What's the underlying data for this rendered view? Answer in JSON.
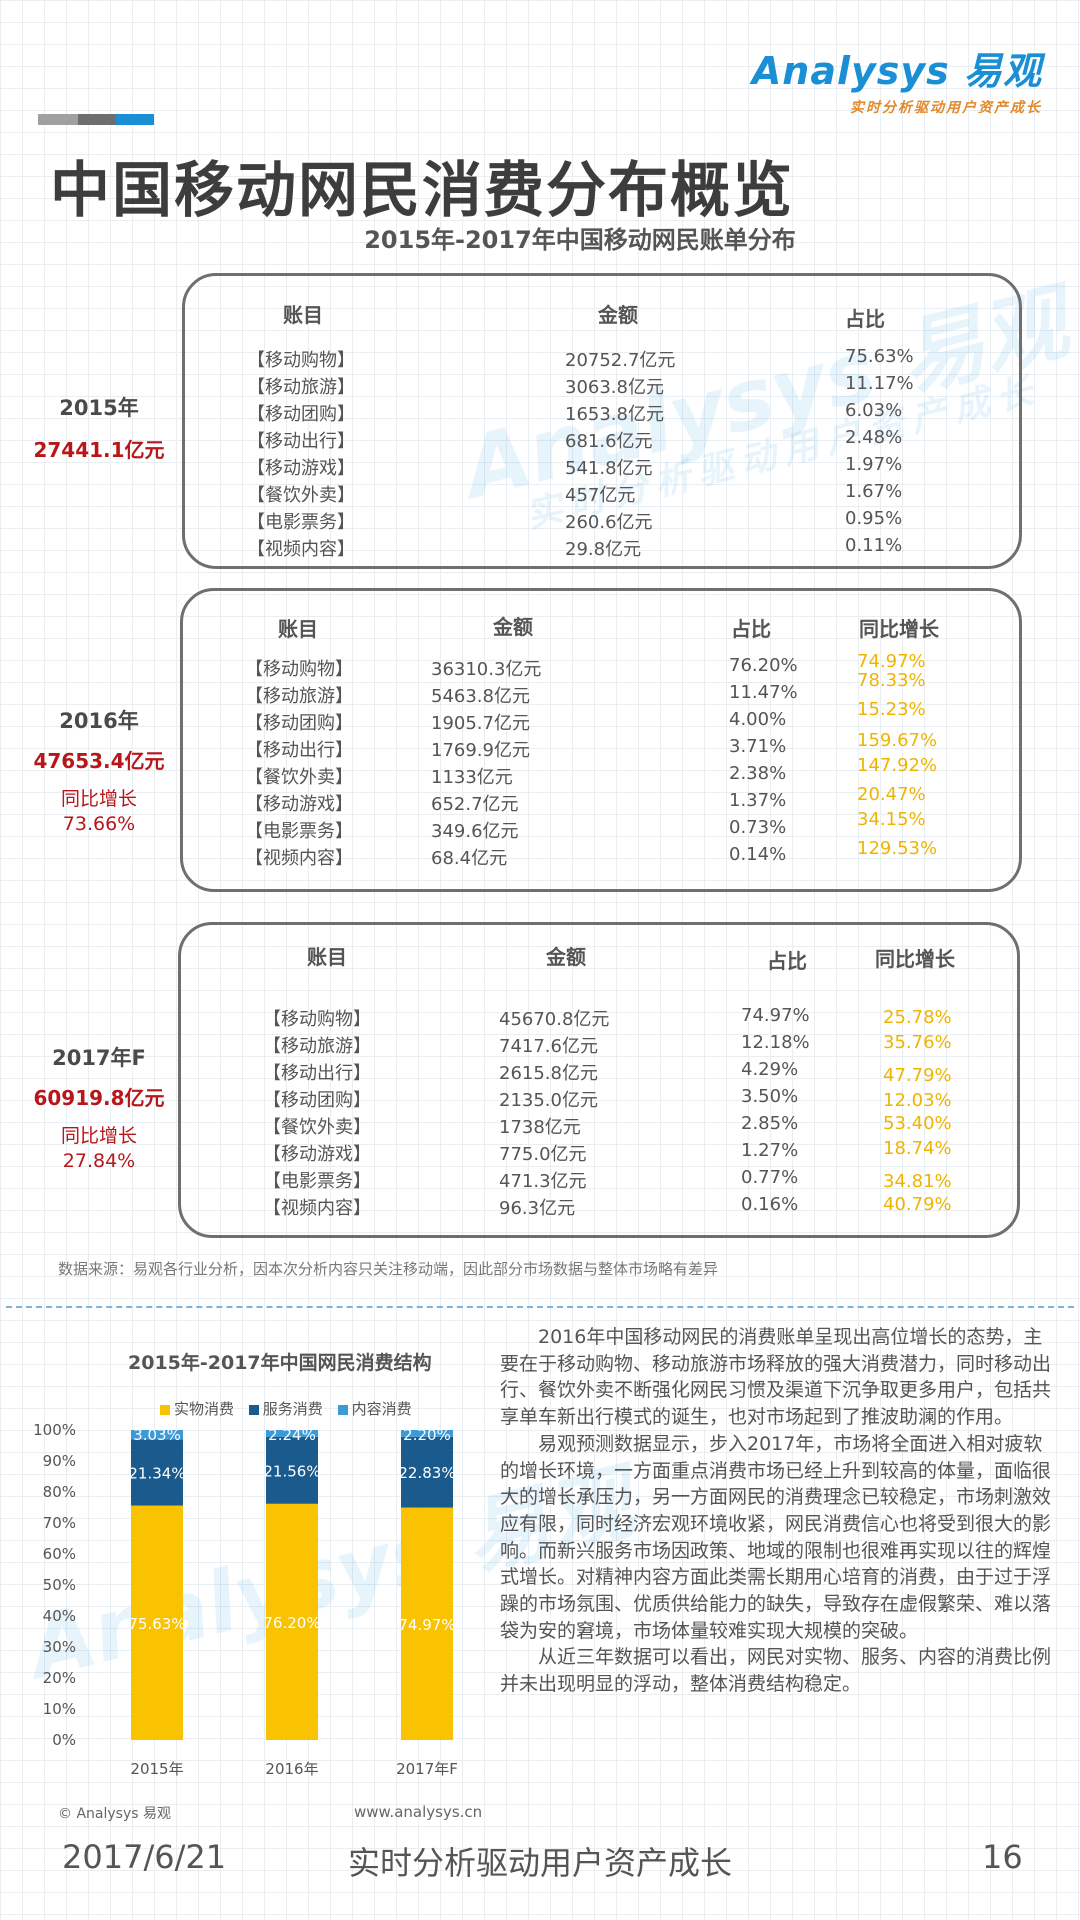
{
  "logo": {
    "name": "Analysys 易观",
    "tagline": "实时分析驱动用户资产成长"
  },
  "watermark": {
    "brand": "Analysys 易观",
    "tagline": "实时分析驱动用户资产成长"
  },
  "colors": {
    "physical": "#f9c302",
    "service": "#1b5a8c",
    "content": "#3c9ad8",
    "growth": "#f0b400",
    "total": "#b7171a"
  },
  "title": "中国移动网民消费分布概览",
  "subtitle": "2015年-2017年中国移动网民账单分布",
  "panels": [
    {
      "year": "2015年",
      "total": "27441.1亿元",
      "growth_label": "",
      "growth_value": "",
      "headers": {
        "item": "账目",
        "amount": "金额",
        "share": "占比",
        "growth": ""
      },
      "rows": [
        {
          "item": "【移动购物】",
          "amount": "20752.7亿元",
          "share": "75.63%",
          "growth": ""
        },
        {
          "item": "【移动旅游】",
          "amount": "3063.8亿元",
          "share": "11.17%",
          "growth": ""
        },
        {
          "item": "【移动团购】",
          "amount": "1653.8亿元",
          "share": "6.03%",
          "growth": ""
        },
        {
          "item": "【移动出行】",
          "amount": "681.6亿元",
          "share": "2.48%",
          "growth": ""
        },
        {
          "item": "【移动游戏】",
          "amount": "541.8亿元",
          "share": "1.97%",
          "growth": ""
        },
        {
          "item": "【餐饮外卖】",
          "amount": "457亿元",
          "share": "1.67%",
          "growth": ""
        },
        {
          "item": "【电影票务】",
          "amount": "260.6亿元",
          "share": "0.95%",
          "growth": ""
        },
        {
          "item": "【视频内容】",
          "amount": "29.8亿元",
          "share": "0.11%",
          "growth": ""
        }
      ]
    },
    {
      "year": "2016年",
      "total": "47653.4亿元",
      "growth_label": "同比增长",
      "growth_value": "73.66%",
      "headers": {
        "item": "账目",
        "amount": "金额",
        "share": "占比",
        "growth": "同比增长"
      },
      "rows": [
        {
          "item": "【移动购物】",
          "amount": "36310.3亿元",
          "share": "76.20%",
          "growth": "74.97%"
        },
        {
          "item": "【移动旅游】",
          "amount": "5463.8亿元",
          "share": "11.47%",
          "growth": "78.33%"
        },
        {
          "item": "【移动团购】",
          "amount": "1905.7亿元",
          "share": "4.00%",
          "growth": "15.23%"
        },
        {
          "item": "【移动出行】",
          "amount": "1769.9亿元",
          "share": "3.71%",
          "growth": "159.67%"
        },
        {
          "item": "【餐饮外卖】",
          "amount": "1133亿元",
          "share": "2.38%",
          "growth": "147.92%"
        },
        {
          "item": "【移动游戏】",
          "amount": "652.7亿元",
          "share": "1.37%",
          "growth": "20.47%"
        },
        {
          "item": "【电影票务】",
          "amount": "349.6亿元",
          "share": "0.73%",
          "growth": "34.15%"
        },
        {
          "item": "【视频内容】",
          "amount": "68.4亿元",
          "share": "0.14%",
          "growth": "129.53%"
        }
      ]
    },
    {
      "year": "2017年F",
      "total": "60919.8亿元",
      "growth_label": "同比增长",
      "growth_value": "27.84%",
      "headers": {
        "item": "账目",
        "amount": "金额",
        "share": "占比",
        "growth": "同比增长"
      },
      "rows": [
        {
          "item": "【移动购物】",
          "amount": "45670.8亿元",
          "share": "74.97%",
          "growth": "25.78%"
        },
        {
          "item": "【移动旅游】",
          "amount": "7417.6亿元",
          "share": "12.18%",
          "growth": "35.76%"
        },
        {
          "item": "【移动出行】",
          "amount": "2615.8亿元",
          "share": "4.29%",
          "growth": "47.79%"
        },
        {
          "item": "【移动团购】",
          "amount": "2135.0亿元",
          "share": "3.50%",
          "growth": "12.03%"
        },
        {
          "item": "【餐饮外卖】",
          "amount": "1738亿元",
          "share": "2.85%",
          "growth": "53.40%"
        },
        {
          "item": "【移动游戏】",
          "amount": "775.0亿元",
          "share": "1.27%",
          "growth": "18.74%"
        },
        {
          "item": "【电影票务】",
          "amount": "471.3亿元",
          "share": "0.77%",
          "growth": "34.81%"
        },
        {
          "item": "【视频内容】",
          "amount": "96.3亿元",
          "share": "0.16%",
          "growth": "40.79%"
        }
      ]
    }
  ],
  "source_note": "数据来源：易观各行业分析，因本次分析内容只关注移动端，因此部分市场数据与整体市场略有差异",
  "chart_data": {
    "type": "bar",
    "stacked": true,
    "title": "2015年-2017年中国网民消费结构",
    "categories": [
      "2015年",
      "2016年",
      "2017年F"
    ],
    "series": [
      {
        "name": "实物消费",
        "values": [
          75.63,
          76.2,
          74.97
        ],
        "labels": [
          "75.63%",
          "76.20%",
          "74.97%"
        ]
      },
      {
        "name": "服务消费",
        "values": [
          21.34,
          21.56,
          22.83
        ],
        "labels": [
          "21.34%",
          "21.56%",
          "22.83%"
        ]
      },
      {
        "name": "内容消费",
        "values": [
          3.03,
          2.24,
          2.2
        ],
        "labels": [
          "3.03%",
          "2.24%",
          "2.20%"
        ]
      }
    ],
    "ylim": [
      0,
      100
    ],
    "yticks": [
      "0%",
      "10%",
      "20%",
      "30%",
      "40%",
      "50%",
      "60%",
      "70%",
      "80%",
      "90%",
      "100%"
    ],
    "legend": "top"
  },
  "paragraphs": [
    "2016年中国移动网民的消费账单呈现出高位增长的态势，主要在于移动购物、移动旅游市场释放的强大消费潜力，同时移动出行、餐饮外卖不断强化网民习惯及渠道下沉争取更多用户，包括共享单车新出行模式的诞生，也对市场起到了推波助澜的作用。",
    "易观预测数据显示，步入2017年，市场将全面进入相对疲软的增长环境，一方面重点消费市场已经上升到较高的体量，面临很大的增长承压力，另一方面网民的消费理念已较稳定，市场刺激效应有限，同时经济宏观环境收紧，网民消费信心也将受到很大的影响。而新兴服务市场因政策、地域的限制也很难再实现以往的辉煌式增长。对精神内容方面此类需长期用心培育的消费，由于过于浮躁的市场氛围、优质供给能力的缺失，导致存在虚假繁荣、难以落袋为安的窘境，市场体量较难实现大规模的突破。",
    "从近三年数据可以看出，网民对实物、服务、内容的消费比例并未出现明显的浮动，整体消费结构稳定。"
  ],
  "footer": {
    "copyright": "© Analysys 易观",
    "url": "www.analysys.cn",
    "date": "2017/6/21",
    "slogan": "实时分析驱动用户资产成长",
    "page": "16"
  }
}
